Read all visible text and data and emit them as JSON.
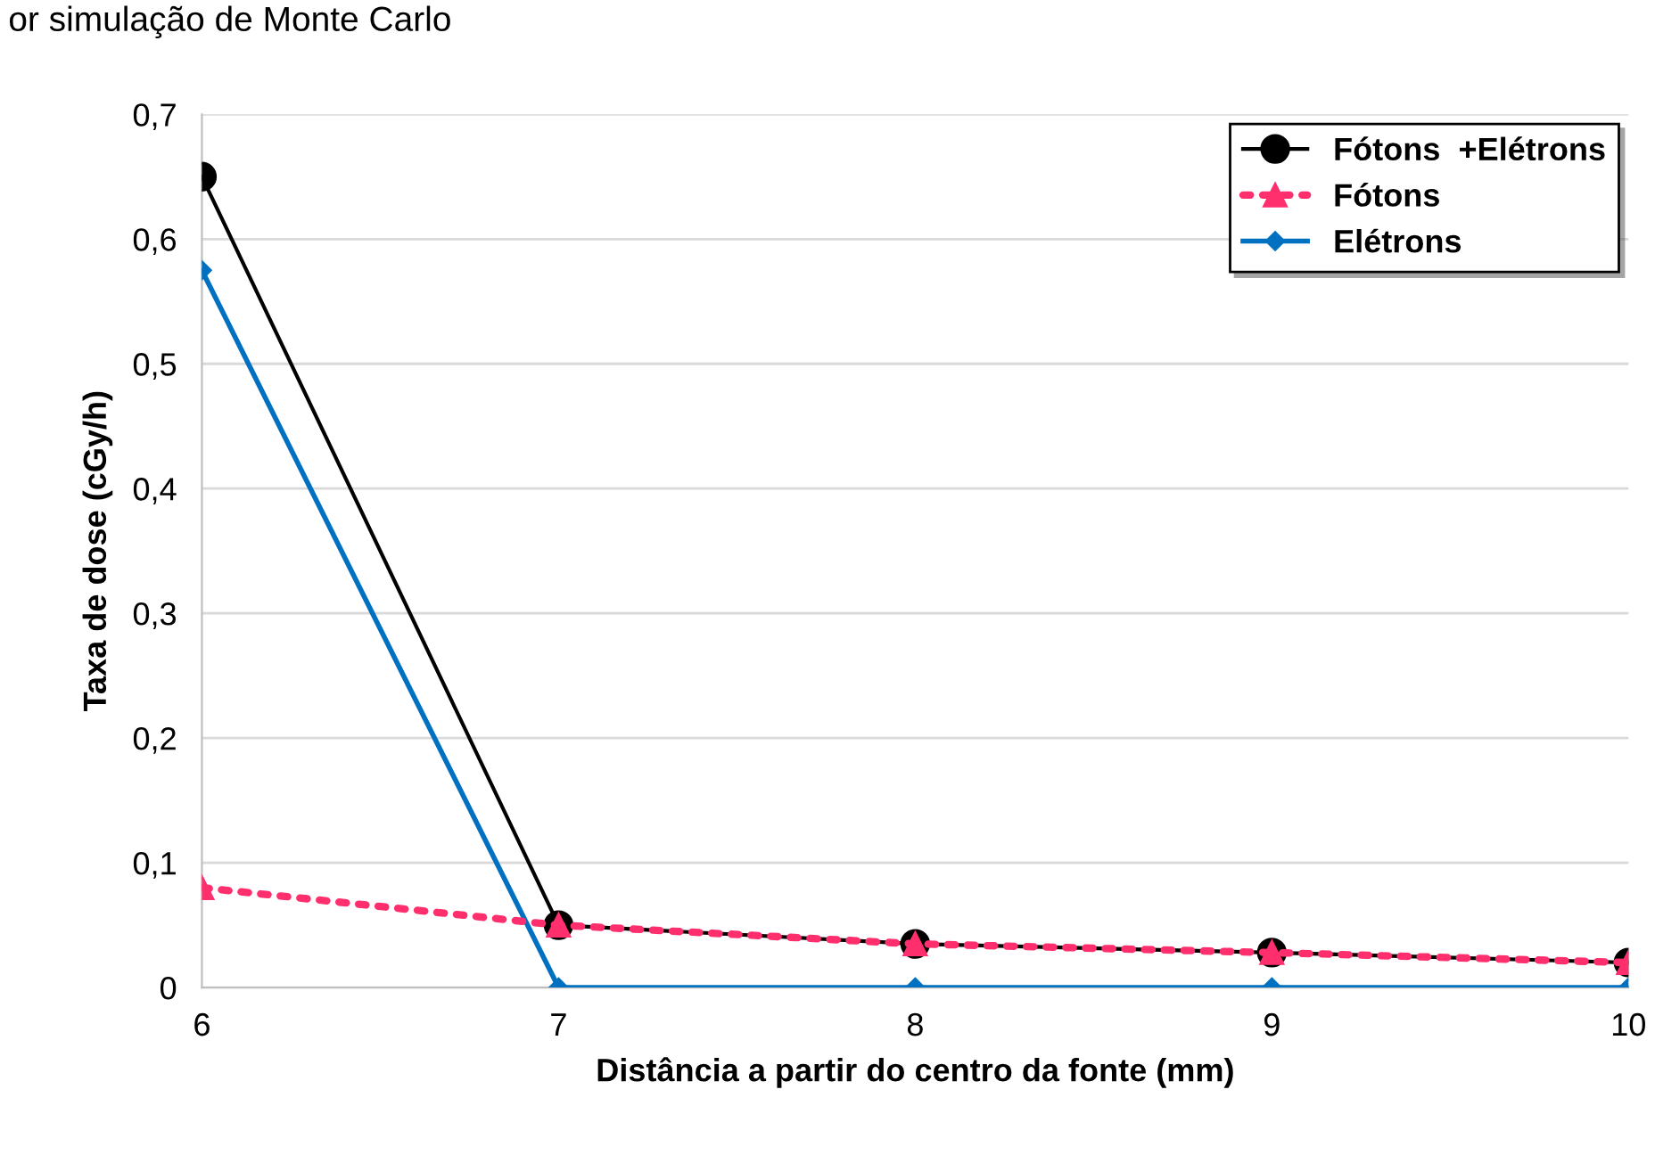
{
  "chart_data": {
    "type": "line",
    "xlabel": "Distância a partir do centro da fonte (mm)",
    "ylabel": "Taxa de dose (cGy/h)",
    "annotations": [
      "or simulação de Monte Carlo"
    ],
    "x": [
      6,
      7,
      8,
      9,
      10
    ],
    "series": [
      {
        "name": "Fótons  +Elétrons",
        "color": "#000000",
        "values": [
          0.65,
          0.05,
          0.035,
          0.028,
          0.02
        ],
        "marker": "circle",
        "line_style": "solid"
      },
      {
        "name": "Fótons",
        "color": "#ff2f6e",
        "values": [
          0.08,
          0.05,
          0.035,
          0.028,
          0.02
        ],
        "marker": "triangle",
        "line_style": "dotted"
      },
      {
        "name": "Elétrons",
        "color": "#0070c0",
        "values": [
          0.575,
          0,
          0,
          0,
          0
        ],
        "marker": "diamond",
        "line_style": "solid"
      }
    ],
    "xlim": [
      6,
      10
    ],
    "xticks": [
      6,
      7,
      8,
      9,
      10
    ],
    "ylim": [
      0,
      0.7
    ],
    "yticks": [
      {
        "value": 0,
        "label": "0"
      },
      {
        "value": 0.1,
        "label": "0,1"
      },
      {
        "value": 0.2,
        "label": "0,2"
      },
      {
        "value": 0.3,
        "label": "0,3"
      },
      {
        "value": 0.4,
        "label": "0,4"
      },
      {
        "value": 0.5,
        "label": "0,5"
      },
      {
        "value": 0.6,
        "label": "0,6"
      },
      {
        "value": 0.7,
        "label": "0,7"
      }
    ],
    "grid": "y",
    "legend": "top right"
  }
}
